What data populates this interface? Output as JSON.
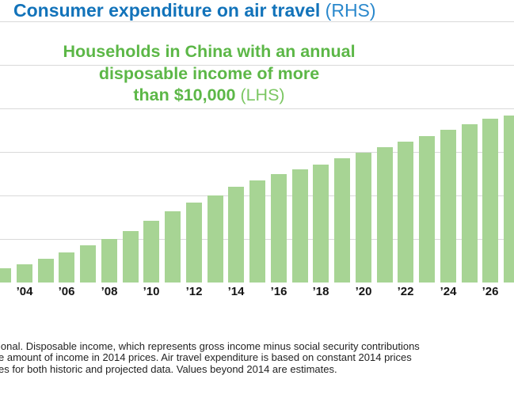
{
  "header": {
    "title": "Consumer expenditure on air travel",
    "title_suffix": " (RHS)"
  },
  "subtitle": {
    "lines": [
      "Households in China with an annual",
      "disposable income of more",
      "than $10,000"
    ],
    "suffix": " (LHS)"
  },
  "chart_data": {
    "type": "bar",
    "title": "Consumer expenditure on air travel (RHS)",
    "subtitle": "Households in China with an annual disposable income of more than $10,000 (LHS)",
    "x": [
      2003,
      2004,
      2005,
      2006,
      2007,
      2008,
      2009,
      2010,
      2011,
      2012,
      2013,
      2014,
      2015,
      2016,
      2017,
      2018,
      2019,
      2020,
      2021,
      2022,
      2023,
      2024,
      2025,
      2026,
      2027
    ],
    "x_tick_labels": [
      "’04",
      "’06",
      "’08",
      "’10",
      "’12",
      "’14",
      "’16",
      "’18",
      "’20",
      "’22",
      "’24",
      "’26"
    ],
    "series": [
      {
        "name": "Households in China with an annual disposable income of more than $10,000 (LHS)",
        "values": [
          0.33,
          0.42,
          0.55,
          0.69,
          0.86,
          1.0,
          1.18,
          1.42,
          1.64,
          1.84,
          2.0,
          2.2,
          2.35,
          2.49,
          2.6,
          2.71,
          2.85,
          2.98,
          3.11,
          3.24,
          3.36,
          3.51,
          3.64,
          3.76,
          3.84
        ]
      }
    ],
    "value_units": "gridline intervals (y-axis tick labels cropped out of view; 6 equal horizontal gridline intervals visible)",
    "ylim": [
      0,
      6
    ],
    "grid": true,
    "legend_position": "none",
    "notes": "First bar (2003) clipped at left edge; last bar (2027) clipped at right edge of the crop. No line series visible despite RHS title."
  },
  "footnote": {
    "lines": [
      "ional. Disposable income, which represents gross income minus social security contributions",
      "e amount of income in 2014 prices. Air travel expenditure is based on constant 2014 prices",
      "es for both historic and projected data. Values beyond 2014 are estimates."
    ]
  },
  "colors": {
    "title_blue": "#1273ba",
    "title_blue_light": "#2a88cc",
    "subtitle_green": "#5cb747",
    "subtitle_green_light": "#7cc763",
    "bar_green": "#a7d494",
    "gridline_gray": "#d9d9d9",
    "tick_label": "#141414",
    "footnote_text": "#232323"
  }
}
